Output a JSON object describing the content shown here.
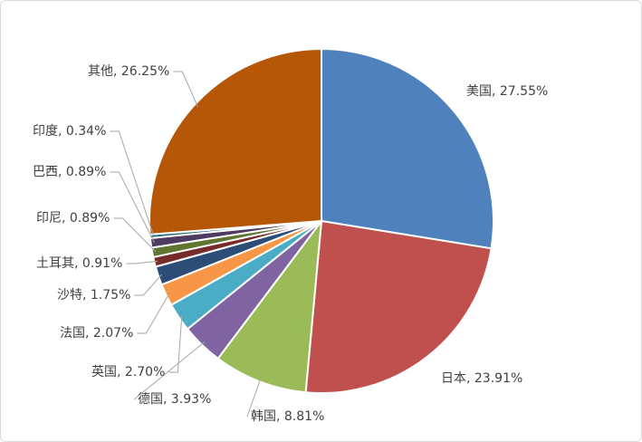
{
  "chart_data": {
    "type": "pie",
    "values": [
      27.55,
      23.91,
      8.81,
      3.93,
      2.7,
      2.07,
      1.75,
      0.91,
      0.89,
      0.89,
      0.34,
      26.25
    ],
    "value_labels": [
      "美国, 27.55%",
      "日本, 23.91%",
      "韩国, 8.81%",
      "德国, 3.93%",
      "英国, 2.70%",
      "法国, 2.07%",
      "沙特, 1.75%",
      "土耳其, 0.91%",
      "印尼, 0.89%",
      "巴西, 0.89%",
      "印度, 0.34%",
      "其他, 26.25%"
    ],
    "colors": [
      "#4f81bd",
      "#c0504d",
      "#9bbb59",
      "#8064a2",
      "#4bacc6",
      "#f79646",
      "#2c4d75",
      "#772c2a",
      "#5f7530",
      "#4d3b62",
      "#276a7c",
      "#b65708"
    ]
  }
}
